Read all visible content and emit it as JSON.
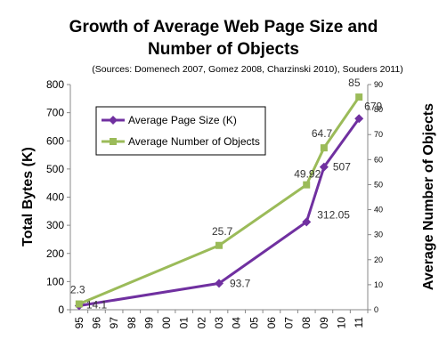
{
  "chart_data": {
    "type": "line",
    "title_lines": [
      "Growth of Average Web Page Size and",
      "Number of Objects"
    ],
    "subtitle": "(Sources: Domenech 2007, Gomez 2008, Charzinski 2010), Souders 2011)",
    "categories": [
      "95",
      "96",
      "97",
      "98",
      "99",
      "00",
      "01",
      "02",
      "03",
      "04",
      "05",
      "06",
      "07",
      "08",
      "09",
      "10",
      "11"
    ],
    "ylabel_left": "Total Bytes (K)",
    "ylabel_right": "Average Number of Objects",
    "ylim_left": [
      0,
      800
    ],
    "yticks_left": [
      0,
      100,
      200,
      300,
      400,
      500,
      600,
      700,
      800
    ],
    "ylim_right": [
      0,
      90
    ],
    "yticks_right": [
      0,
      10,
      20,
      30,
      40,
      50,
      60,
      70,
      80,
      90
    ],
    "legend_placement": "top-left",
    "series": [
      {
        "name": "Average Page Size (K)",
        "axis": "left",
        "color": "#7030A0",
        "marker": "diamond",
        "points": [
          {
            "x": 1995,
            "y": 14.1,
            "label": "14.1"
          },
          {
            "x": 2003,
            "y": 93.7,
            "label": "93.7"
          },
          {
            "x": 2008,
            "y": 312.05,
            "label": "312.05"
          },
          {
            "x": 2009,
            "y": 507,
            "label": "507"
          },
          {
            "x": 2011,
            "y": 679,
            "label": "679"
          }
        ]
      },
      {
        "name": "Average Number of Objects",
        "axis": "right",
        "color": "#9BBB59",
        "marker": "square",
        "points": [
          {
            "x": 1995,
            "y": 2.3,
            "label": "2.3"
          },
          {
            "x": 2003,
            "y": 25.7,
            "label": "25.7"
          },
          {
            "x": 2008,
            "y": 49.92,
            "label": "49.92"
          },
          {
            "x": 2009,
            "y": 64.7,
            "label": "64.7"
          },
          {
            "x": 2011,
            "y": 85,
            "label": "85"
          }
        ]
      }
    ]
  }
}
